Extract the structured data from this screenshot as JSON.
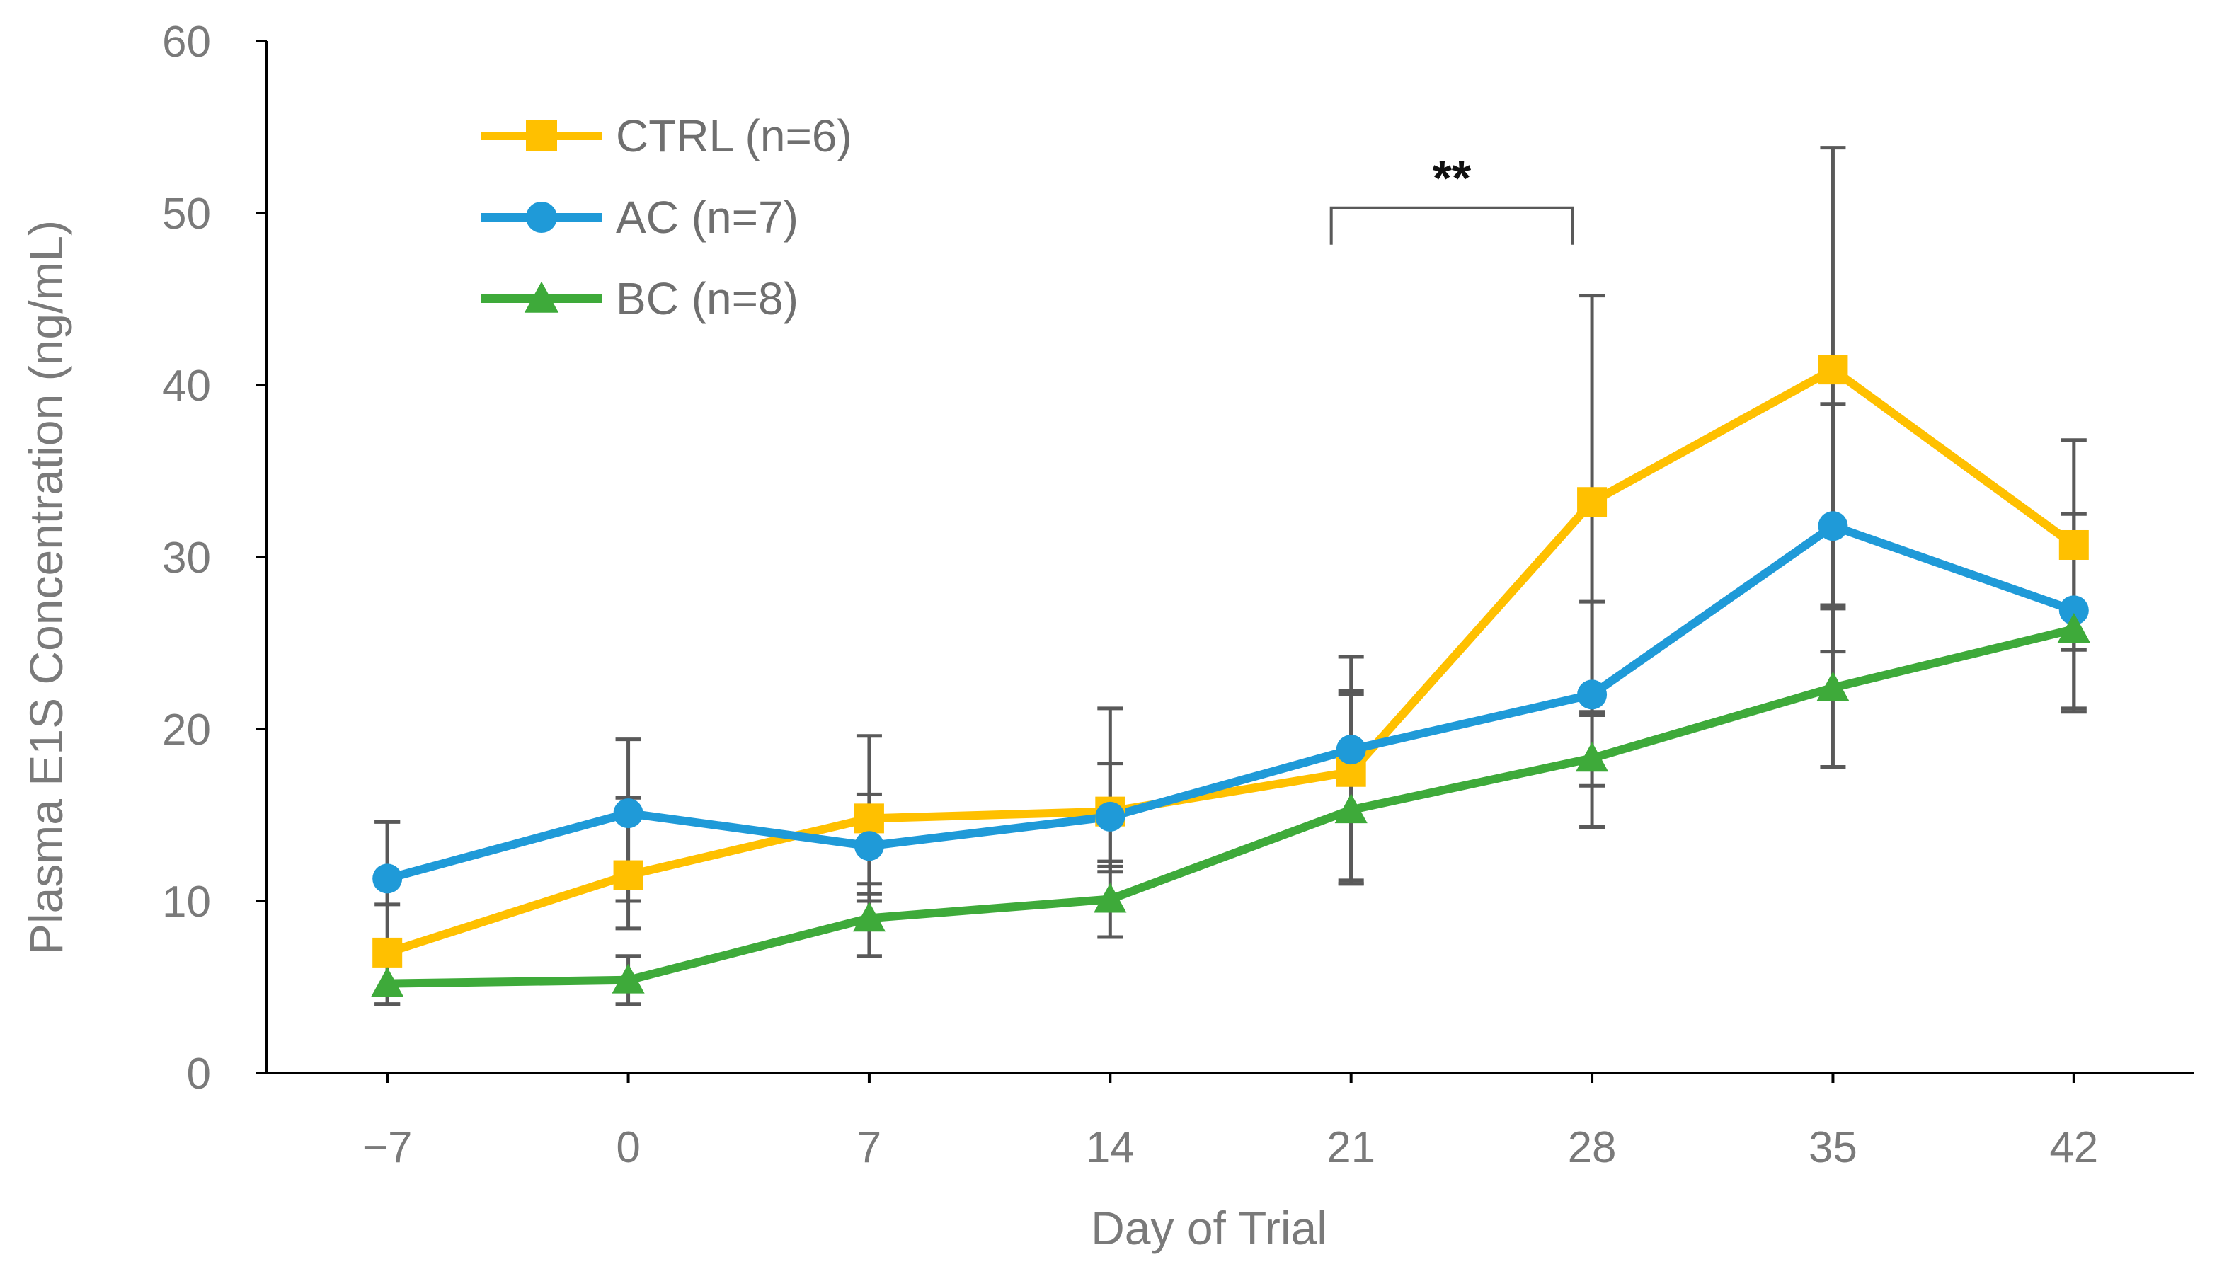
{
  "chart_data": {
    "type": "line",
    "title": "",
    "xlabel": "Day of Trial",
    "ylabel": "Plasma E1S Concentration (ng/mL)",
    "categories": [
      "−7",
      "0",
      "7",
      "14",
      "21",
      "28",
      "35",
      "42"
    ],
    "ylim": [
      0,
      60
    ],
    "yticks": [
      0,
      10,
      20,
      30,
      40,
      50,
      60
    ],
    "grid": false,
    "legend_position": "top-left",
    "error_bar_color": "#595959",
    "series": [
      {
        "name": "CTRL (n=6)",
        "color": "#FFC000",
        "marker": "square",
        "values": [
          7.0,
          11.5,
          14.8,
          15.2,
          17.5,
          33.2,
          40.9,
          30.7
        ],
        "error_upper": [
          14.6,
          16.0,
          19.6,
          21.2,
          24.2,
          45.2,
          53.8,
          36.8
        ],
        "error_lower": [
          4.0,
          8.4,
          10.0,
          12.0,
          11.0,
          21.0,
          27.0,
          24.6
        ]
      },
      {
        "name": "AC (n=7)",
        "color": "#1F9AD8",
        "marker": "circle",
        "values": [
          11.3,
          15.1,
          13.2,
          14.9,
          18.8,
          22.0,
          31.8,
          26.9
        ],
        "error_upper": [
          14.6,
          19.4,
          16.2,
          18.0,
          22.2,
          27.4,
          38.9,
          32.5
        ],
        "error_lower": [
          9.8,
          10.0,
          10.4,
          11.7,
          11.0,
          16.7,
          24.5,
          21.2
        ]
      },
      {
        "name": "BC (n=8)",
        "color": "#3EAA3A",
        "marker": "triangle",
        "values": [
          5.2,
          5.4,
          9.0,
          10.1,
          15.3,
          18.3,
          22.4,
          25.8
        ],
        "error_upper": [
          6.4,
          6.8,
          11.0,
          12.3,
          22.0,
          20.8,
          27.2,
          27.0
        ],
        "error_lower": [
          4.0,
          4.0,
          6.8,
          7.9,
          11.2,
          14.3,
          17.8,
          21.0
        ]
      }
    ],
    "annotations": [
      {
        "text": "**",
        "from_category": "21",
        "to_category": "28",
        "bracket_y": 50.3
      }
    ]
  }
}
